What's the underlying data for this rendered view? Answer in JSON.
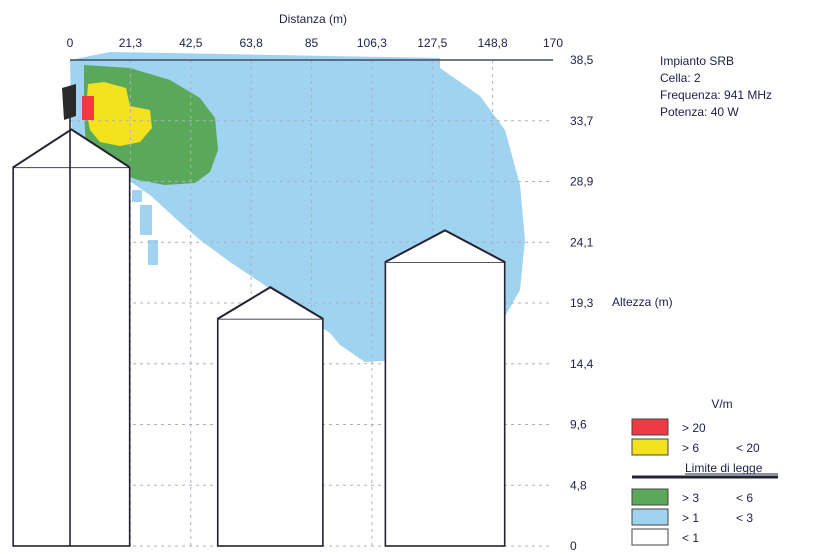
{
  "chart_data": {
    "type": "heatmap",
    "title": "",
    "xlabel": "Distanza (m)",
    "ylabel": "Altezza (m)",
    "x_ticks": [
      "0",
      "21,3",
      "42,5",
      "63,8",
      "85",
      "106,3",
      "127,5",
      "148,8",
      "170"
    ],
    "y_ticks": [
      "38,5",
      "33,7",
      "28,9",
      "24,1",
      "19,3",
      "14,4",
      "9,6",
      "4,8",
      "0"
    ],
    "xlim": [
      0,
      170
    ],
    "ylim": [
      0,
      38.5
    ],
    "grid": true,
    "legend_position": "bottom-right",
    "legend_title": "V/m",
    "legend_entries": [
      {
        "label_a": "> 20",
        "label_b": "",
        "color": "#ee3a45"
      },
      {
        "label_a": "> 6",
        "label_b": "< 20",
        "color": "#f4e21e"
      },
      {
        "label_a": "> 3",
        "label_b": "< 6",
        "color": "#5aa85a"
      },
      {
        "label_a": "> 1",
        "label_b": "< 3",
        "color": "#9fd3ef"
      },
      {
        "label_a": "< 1",
        "label_b": "",
        "color": "#ffffff"
      }
    ],
    "limit_label": "Limite di legge",
    "field_levels": [
      {
        "level": "< 1",
        "color": "#ffffff"
      },
      {
        "level": "> 1 < 3",
        "color": "#9fd3ef",
        "x_range_m": [
          0,
          165
        ],
        "y_range_m": [
          15,
          38.5
        ]
      },
      {
        "level": "> 3 < 6",
        "color": "#5aa85a",
        "x_range_m": [
          5,
          53
        ],
        "y_range_m": [
          29.5,
          37.5
        ]
      },
      {
        "level": "> 6 < 20",
        "color": "#f4e21e",
        "x_range_m": [
          6,
          28
        ],
        "y_range_m": [
          32.5,
          36.5
        ]
      },
      {
        "level": "> 20",
        "color": "#ee3a45",
        "x_range_m": [
          5,
          8
        ],
        "y_range_m": [
          34,
          36
        ]
      }
    ],
    "antenna": {
      "x_m": 0,
      "height_m": 35
    },
    "buildings": [
      {
        "x_start_m": -20,
        "x_end_m": 21,
        "wall_height_m": 30,
        "ridge_height_m": 33
      },
      {
        "x_start_m": 52,
        "x_end_m": 89,
        "wall_height_m": 18,
        "ridge_height_m": 20.5
      },
      {
        "x_start_m": 111,
        "x_end_m": 153,
        "wall_height_m": 22.5,
        "ridge_height_m": 25
      }
    ]
  },
  "info": {
    "line1": "Impianto SRB",
    "line2": "Cella: 2",
    "line3": "Frequenza: 941 MHz",
    "line4": "Potenza: 40 W"
  }
}
